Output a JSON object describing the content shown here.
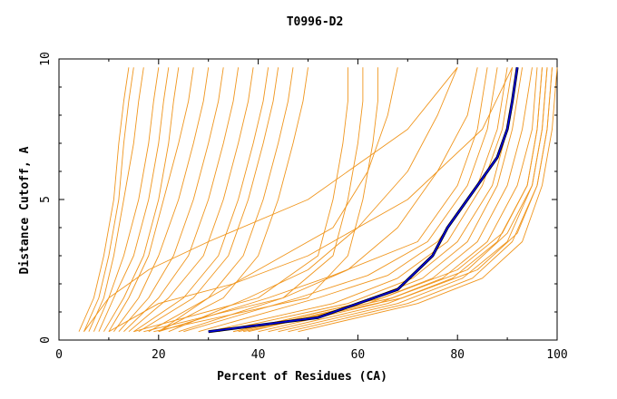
{
  "chart_data": {
    "type": "line",
    "title": "T0996-D2",
    "xlabel": "Percent of Residues (CA)",
    "ylabel": "Distance Cutoff, A",
    "xlim": [
      0,
      100
    ],
    "ylim": [
      0,
      10
    ],
    "xticks": [
      "0",
      "20",
      "40",
      "60",
      "80",
      "100"
    ],
    "yticks": [
      "0",
      "5",
      "10"
    ],
    "grid": false,
    "legend": "none",
    "colors": {
      "models": "#f0961e",
      "highlight_black": "#000000",
      "highlight_blue": "#0000e0"
    },
    "series": [
      {
        "color": "#f0961e",
        "x": [
          4,
          7,
          9,
          11,
          12,
          13,
          14
        ],
        "y": [
          0.3,
          1.5,
          3,
          5,
          7,
          8.5,
          9.7
        ]
      },
      {
        "color": "#f0961e",
        "x": [
          5,
          8,
          10,
          12,
          13,
          14,
          15
        ],
        "y": [
          0.3,
          1.5,
          3,
          5,
          7,
          8.5,
          9.7
        ]
      },
      {
        "color": "#f0961e",
        "x": [
          6,
          9,
          11,
          13,
          15,
          16,
          17
        ],
        "y": [
          0.3,
          1.5,
          3,
          5,
          7,
          8.5,
          9.7
        ]
      },
      {
        "color": "#f0961e",
        "x": [
          7,
          10,
          13,
          16,
          18,
          19,
          20
        ],
        "y": [
          0.3,
          1.5,
          3,
          5,
          7,
          8.5,
          9.7
        ]
      },
      {
        "color": "#f0961e",
        "x": [
          8,
          11,
          15,
          18,
          20,
          21,
          22
        ],
        "y": [
          0.3,
          1.5,
          3,
          5,
          7,
          8.5,
          9.7
        ]
      },
      {
        "color": "#f0961e",
        "x": [
          9,
          13,
          17,
          20,
          22,
          23,
          24
        ],
        "y": [
          0.3,
          1.5,
          3,
          5,
          7,
          8.5,
          9.7
        ]
      },
      {
        "color": "#f0961e",
        "x": [
          10,
          14,
          18,
          21,
          24,
          26,
          27
        ],
        "y": [
          0.3,
          1.5,
          3,
          5,
          7,
          8.5,
          9.7
        ]
      },
      {
        "color": "#f0961e",
        "x": [
          11,
          16,
          20,
          24,
          27,
          29,
          30
        ],
        "y": [
          0.3,
          1.5,
          3,
          5,
          7,
          8.5,
          9.7
        ]
      },
      {
        "color": "#f0961e",
        "x": [
          12,
          18,
          23,
          27,
          30,
          32,
          33
        ],
        "y": [
          0.3,
          1.5,
          3,
          5,
          7,
          8.5,
          9.7
        ]
      },
      {
        "color": "#f0961e",
        "x": [
          13,
          20,
          26,
          30,
          33,
          35,
          36
        ],
        "y": [
          0.3,
          1.5,
          3,
          5,
          7,
          8.5,
          9.7
        ]
      },
      {
        "color": "#f0961e",
        "x": [
          14,
          22,
          29,
          33,
          36,
          38,
          39
        ],
        "y": [
          0.3,
          1.5,
          3,
          5,
          7,
          8.5,
          9.7
        ]
      },
      {
        "color": "#f0961e",
        "x": [
          15,
          25,
          32,
          36,
          39,
          41,
          42
        ],
        "y": [
          0.3,
          1.5,
          3,
          5,
          7,
          8.5,
          9.7
        ]
      },
      {
        "color": "#f0961e",
        "x": [
          16,
          27,
          34,
          38,
          41,
          43,
          44
        ],
        "y": [
          0.3,
          1.5,
          3,
          5,
          7,
          8.5,
          9.7
        ]
      },
      {
        "color": "#f0961e",
        "x": [
          18,
          30,
          37,
          41,
          44,
          46,
          47
        ],
        "y": [
          0.3,
          1.5,
          3,
          5,
          7,
          8.5,
          9.7
        ]
      },
      {
        "color": "#f0961e",
        "x": [
          20,
          33,
          40,
          44,
          47,
          49,
          50
        ],
        "y": [
          0.3,
          1.5,
          3,
          5,
          7,
          8.5,
          9.7
        ]
      },
      {
        "color": "#f0961e",
        "x": [
          15,
          40,
          52,
          55,
          57,
          58,
          58
        ],
        "y": [
          0.3,
          1.5,
          3,
          5,
          7,
          8.5,
          9.7
        ]
      },
      {
        "color": "#f0961e",
        "x": [
          17,
          45,
          55,
          58,
          60,
          61,
          61
        ],
        "y": [
          0.3,
          1.5,
          3,
          5,
          7,
          8.5,
          9.7
        ]
      },
      {
        "color": "#f0961e",
        "x": [
          19,
          50,
          58,
          61,
          63,
          64,
          64
        ],
        "y": [
          0.3,
          1.5,
          3,
          5,
          7,
          8.5,
          9.7
        ]
      },
      {
        "color": "#f0961e",
        "x": [
          20,
          30,
          40,
          55,
          62,
          66,
          68
        ],
        "y": [
          0.3,
          1.5,
          2.5,
          4,
          6,
          8,
          9.7
        ]
      },
      {
        "color": "#f0961e",
        "x": [
          22,
          38,
          50,
          60,
          70,
          76,
          80
        ],
        "y": [
          0.3,
          1.5,
          2.5,
          4,
          6,
          8,
          9.7
        ]
      },
      {
        "color": "#f0961e",
        "x": [
          24,
          45,
          58,
          68,
          76,
          82,
          84
        ],
        "y": [
          0.3,
          1.5,
          2.5,
          4,
          6,
          8,
          9.7
        ]
      },
      {
        "color": "#f0961e",
        "x": [
          20,
          42,
          55,
          72,
          80,
          84,
          86
        ],
        "y": [
          0.3,
          1.5,
          2.3,
          3.5,
          5.5,
          7.5,
          9.7
        ]
      },
      {
        "color": "#f0961e",
        "x": [
          25,
          48,
          62,
          74,
          82,
          86,
          88
        ],
        "y": [
          0.3,
          1.5,
          2.3,
          3.5,
          5.5,
          7.5,
          9.7
        ]
      },
      {
        "color": "#f0961e",
        "x": [
          28,
          52,
          66,
          76,
          84,
          88,
          90
        ],
        "y": [
          0.3,
          1.5,
          2.3,
          3.5,
          5.5,
          7.5,
          9.7
        ]
      },
      {
        "color": "#f0961e",
        "x": [
          30,
          55,
          68,
          78,
          85,
          89,
          91
        ],
        "y": [
          0.3,
          1.3,
          2.2,
          3.5,
          5.5,
          7.5,
          9.7
        ]
      },
      {
        "color": "#f0961e",
        "x": [
          32,
          58,
          71,
          80,
          87,
          90,
          92
        ],
        "y": [
          0.3,
          1.3,
          2.2,
          3.5,
          5.5,
          7.5,
          9.7
        ]
      },
      {
        "color": "#f0961e",
        "x": [
          35,
          60,
          73,
          82,
          88,
          91,
          93
        ],
        "y": [
          0.3,
          1.3,
          2.2,
          3.5,
          5.5,
          7.5,
          9.7
        ]
      },
      {
        "color": "#f0961e",
        "x": [
          38,
          62,
          75,
          84,
          90,
          93,
          95
        ],
        "y": [
          0.3,
          1.3,
          2.2,
          3.5,
          5.5,
          7.5,
          9.7
        ]
      },
      {
        "color": "#f0961e",
        "x": [
          40,
          64,
          77,
          86,
          92,
          95,
          96
        ],
        "y": [
          0.3,
          1.3,
          2.2,
          3.5,
          5.5,
          7.5,
          9.7
        ]
      },
      {
        "color": "#f0961e",
        "x": [
          42,
          66,
          79,
          88,
          94,
          96,
          97
        ],
        "y": [
          0.3,
          1.3,
          2.2,
          3.5,
          5.5,
          7.5,
          9.7
        ]
      },
      {
        "color": "#f0961e",
        "x": [
          44,
          68,
          81,
          90,
          95,
          97,
          98
        ],
        "y": [
          0.3,
          1.3,
          2.2,
          3.5,
          5.5,
          7.5,
          9.7
        ]
      },
      {
        "color": "#f0961e",
        "x": [
          46,
          70,
          83,
          91,
          96,
          98,
          99
        ],
        "y": [
          0.3,
          1.3,
          2.2,
          3.5,
          5.5,
          7.5,
          9.7
        ]
      },
      {
        "color": "#f0961e",
        "x": [
          48,
          72,
          85,
          93,
          97,
          99,
          100
        ],
        "y": [
          0.3,
          1.3,
          2.2,
          3.5,
          5.5,
          7.5,
          9.7
        ]
      },
      {
        "color": "#f0961e",
        "x": [
          35,
          65,
          80,
          89,
          94,
          96,
          97
        ],
        "y": [
          0.3,
          1.5,
          2.5,
          3.8,
          5.5,
          7.5,
          9.7
        ]
      },
      {
        "color": "#f0961e",
        "x": [
          36,
          67,
          82,
          90,
          95,
          97,
          98
        ],
        "y": [
          0.3,
          1.5,
          2.5,
          3.8,
          5.5,
          7.5,
          9.7
        ]
      },
      {
        "color": "#f0961e",
        "x": [
          37,
          69,
          84,
          92,
          96,
          98,
          99
        ],
        "y": [
          0.3,
          1.5,
          2.5,
          3.8,
          5.5,
          7.5,
          9.7
        ]
      },
      {
        "color": "#f0961e",
        "x": [
          5,
          10,
          18,
          30,
          50,
          70,
          80
        ],
        "y": [
          0.3,
          1.5,
          2.5,
          3.5,
          5,
          7.5,
          9.7
        ]
      },
      {
        "color": "#f0961e",
        "x": [
          10,
          20,
          35,
          50,
          70,
          85,
          91
        ],
        "y": [
          0.3,
          1.3,
          2,
          3,
          5,
          7.5,
          9.7
        ]
      },
      {
        "color": "#000000",
        "x": [
          30,
          52,
          68,
          75,
          78,
          84,
          88,
          90,
          91,
          92
        ],
        "y": [
          0.3,
          0.8,
          1.8,
          3,
          4,
          5.5,
          6.5,
          7.5,
          8.5,
          9.7
        ]
      },
      {
        "color": "#0000e0",
        "x": [
          30,
          52,
          68,
          75,
          78,
          84,
          88,
          90,
          91,
          92
        ],
        "y": [
          0.3,
          0.8,
          1.8,
          3,
          4,
          5.5,
          6.5,
          7.5,
          8.5,
          9.7
        ]
      }
    ]
  }
}
